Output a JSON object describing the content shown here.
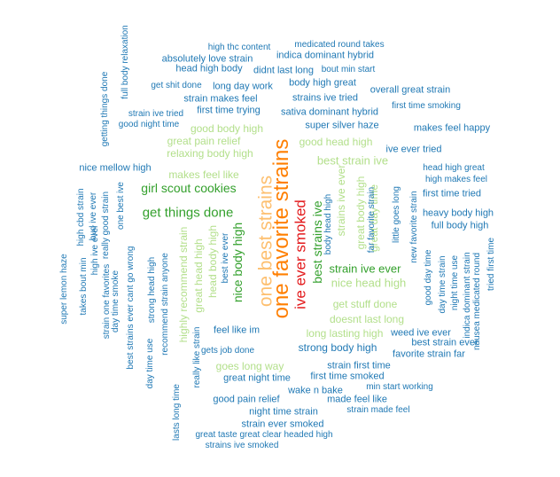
{
  "wordcloud": {
    "colors": {
      "blue": "#1f78b4",
      "green": "#33a02c",
      "lightgreen": "#b2df8a",
      "orange": "#ff7f00",
      "red": "#e31a1c",
      "peach": "#fdbf6f"
    },
    "words": [
      {
        "text": "one favorite strains",
        "color": "orange"
      },
      {
        "text": "one best strains",
        "color": "peach"
      },
      {
        "text": "ive ever smoked",
        "color": "red"
      },
      {
        "text": "get things done",
        "color": "green"
      },
      {
        "text": "girl scout cookies",
        "color": "green"
      },
      {
        "text": "best strains ive",
        "color": "green"
      },
      {
        "text": "nice body high",
        "color": "green"
      },
      {
        "text": "strain ive ever",
        "color": "green"
      },
      {
        "text": "nice head high",
        "color": "lightgreen"
      },
      {
        "text": "best strain ive",
        "color": "lightgreen"
      },
      {
        "text": "good head high",
        "color": "lightgreen"
      },
      {
        "text": "good body high",
        "color": "lightgreen"
      },
      {
        "text": "great pain relief",
        "color": "lightgreen"
      },
      {
        "text": "relaxing body high",
        "color": "lightgreen"
      },
      {
        "text": "makes feel like",
        "color": "lightgreen"
      },
      {
        "text": "get stuff done",
        "color": "lightgreen"
      },
      {
        "text": "doesnt last long",
        "color": "lightgreen"
      },
      {
        "text": "long lasting high",
        "color": "lightgreen"
      },
      {
        "text": "goes long way",
        "color": "lightgreen"
      },
      {
        "text": "highly recommend strain",
        "color": "lightgreen"
      },
      {
        "text": "great head high",
        "color": "lightgreen"
      },
      {
        "text": "head body high",
        "color": "lightgreen"
      },
      {
        "text": "strains ive ever",
        "color": "lightgreen"
      },
      {
        "text": "great body high",
        "color": "lightgreen"
      },
      {
        "text": "great day time",
        "color": "lightgreen"
      },
      {
        "text": "strong body high",
        "color": "blue"
      },
      {
        "text": "high thc content",
        "color": "blue"
      },
      {
        "text": "medicated round takes",
        "color": "blue"
      },
      {
        "text": "absolutely love strain",
        "color": "blue"
      },
      {
        "text": "indica dominant hybrid",
        "color": "blue"
      },
      {
        "text": "head high body",
        "color": "blue"
      },
      {
        "text": "didnt last long",
        "color": "blue"
      },
      {
        "text": "bout min start",
        "color": "blue"
      },
      {
        "text": "get shit done",
        "color": "blue"
      },
      {
        "text": "long day work",
        "color": "blue"
      },
      {
        "text": "body high great",
        "color": "blue"
      },
      {
        "text": "overall great strain",
        "color": "blue"
      },
      {
        "text": "strain makes feel",
        "color": "blue"
      },
      {
        "text": "strains ive tried",
        "color": "blue"
      },
      {
        "text": "first time trying",
        "color": "blue"
      },
      {
        "text": "sativa dominant hybrid",
        "color": "blue"
      },
      {
        "text": "first time smoking",
        "color": "blue"
      },
      {
        "text": "strain ive tried",
        "color": "blue"
      },
      {
        "text": "good night time",
        "color": "blue"
      },
      {
        "text": "super silver haze",
        "color": "blue"
      },
      {
        "text": "makes feel happy",
        "color": "blue"
      },
      {
        "text": "ive ever tried",
        "color": "blue"
      },
      {
        "text": "nice mellow high",
        "color": "blue"
      },
      {
        "text": "head high great",
        "color": "blue"
      },
      {
        "text": "high makes feel",
        "color": "blue"
      },
      {
        "text": "first time tried",
        "color": "blue"
      },
      {
        "text": "heavy body high",
        "color": "blue"
      },
      {
        "text": "full body high",
        "color": "blue"
      },
      {
        "text": "feel like im",
        "color": "blue"
      },
      {
        "text": "gets job done",
        "color": "blue"
      },
      {
        "text": "weed ive ever",
        "color": "blue"
      },
      {
        "text": "best strain ever",
        "color": "blue"
      },
      {
        "text": "favorite strain far",
        "color": "blue"
      },
      {
        "text": "strain first time",
        "color": "blue"
      },
      {
        "text": "great night time",
        "color": "blue"
      },
      {
        "text": "first time smoked",
        "color": "blue"
      },
      {
        "text": "wake n bake",
        "color": "blue"
      },
      {
        "text": "min start working",
        "color": "blue"
      },
      {
        "text": "good pain relief",
        "color": "blue"
      },
      {
        "text": "made feel like",
        "color": "blue"
      },
      {
        "text": "night time strain",
        "color": "blue"
      },
      {
        "text": "strain made feel",
        "color": "blue"
      },
      {
        "text": "strain ever smoked",
        "color": "blue"
      },
      {
        "text": "great taste great clear headed high",
        "color": "blue"
      },
      {
        "text": "strains ive smoked",
        "color": "blue"
      },
      {
        "text": "full body relaxation",
        "color": "blue"
      },
      {
        "text": "getting things done",
        "color": "blue"
      },
      {
        "text": "high cbd strain",
        "color": "blue"
      },
      {
        "text": "bud ive ever",
        "color": "blue"
      },
      {
        "text": "one best ive",
        "color": "blue"
      },
      {
        "text": "high ive ever",
        "color": "blue"
      },
      {
        "text": "really good strain",
        "color": "blue"
      },
      {
        "text": "takes bout min",
        "color": "blue"
      },
      {
        "text": "strain one favorites",
        "color": "blue"
      },
      {
        "text": "day time smoke",
        "color": "blue"
      },
      {
        "text": "super lemon haze",
        "color": "blue"
      },
      {
        "text": "best strains ever cant go wrong",
        "color": "blue"
      },
      {
        "text": "day time use",
        "color": "blue"
      },
      {
        "text": "strong head high",
        "color": "blue"
      },
      {
        "text": "recommend strain anyone",
        "color": "blue"
      },
      {
        "text": "really like strain",
        "color": "blue"
      },
      {
        "text": "lasts long time",
        "color": "blue"
      },
      {
        "text": "best ive ever",
        "color": "blue"
      },
      {
        "text": "body head high",
        "color": "blue"
      },
      {
        "text": "far favorite strain",
        "color": "blue"
      },
      {
        "text": "little goes long",
        "color": "blue"
      },
      {
        "text": "new favorite strain",
        "color": "blue"
      },
      {
        "text": "good day time",
        "color": "blue"
      },
      {
        "text": "day time strain",
        "color": "blue"
      },
      {
        "text": "night time use",
        "color": "blue"
      },
      {
        "text": "indica dominant strain",
        "color": "blue"
      },
      {
        "text": "nausea medicated round",
        "color": "blue"
      },
      {
        "text": "tried first time",
        "color": "blue"
      }
    ]
  }
}
